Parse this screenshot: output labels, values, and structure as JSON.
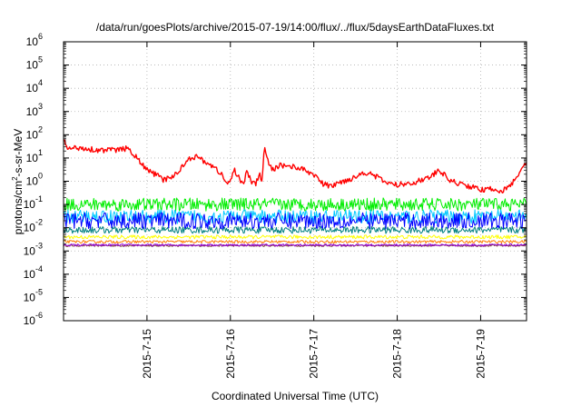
{
  "chart_data": {
    "type": "line",
    "title": "/data/run/goesPlots/archive/2015-07-19/14:00/flux/../flux/5daysEarthDataFluxes.txt",
    "xlabel": "Coordinated Universal Time (UTC)",
    "ylabel": {
      "before": "protons/cm",
      "sup": "2",
      "after": "-s-sr-MeV"
    },
    "yscale": "log",
    "ylim": [
      1e-06,
      1000000.0
    ],
    "xlim": [
      0,
      5.55
    ],
    "grid": true,
    "yticks": [
      {
        "exp": "-6",
        "value": 1e-06
      },
      {
        "exp": "-5",
        "value": 1e-05
      },
      {
        "exp": "-4",
        "value": 0.0001
      },
      {
        "exp": "-3",
        "value": 0.001
      },
      {
        "exp": "-2",
        "value": 0.01
      },
      {
        "exp": "-1",
        "value": 0.1
      },
      {
        "exp": "0",
        "value": 1
      },
      {
        "exp": "1",
        "value": 10
      },
      {
        "exp": "2",
        "value": 100
      },
      {
        "exp": "3",
        "value": 1000
      },
      {
        "exp": "4",
        "value": 10000
      },
      {
        "exp": "5",
        "value": 100000
      },
      {
        "exp": "6",
        "value": 1000000
      }
    ],
    "xticks": [
      {
        "label": "2015-7-15",
        "value": 1
      },
      {
        "label": "2015-7-16",
        "value": 2
      },
      {
        "label": "2015-7-17",
        "value": 3
      },
      {
        "label": "2015-7-18",
        "value": 4
      },
      {
        "label": "2015-7-19",
        "value": 5
      }
    ],
    "series": [
      {
        "color": "#ff0000",
        "noise": 0.12,
        "points": [
          [
            0.0,
            60
          ],
          [
            0.05,
            25
          ],
          [
            0.2,
            28
          ],
          [
            0.4,
            22
          ],
          [
            0.6,
            22
          ],
          [
            0.75,
            25
          ],
          [
            0.82,
            18
          ],
          [
            0.9,
            8
          ],
          [
            1.0,
            3
          ],
          [
            1.1,
            2
          ],
          [
            1.2,
            1.1
          ],
          [
            1.35,
            2
          ],
          [
            1.5,
            10
          ],
          [
            1.6,
            11
          ],
          [
            1.7,
            7
          ],
          [
            1.8,
            4
          ],
          [
            1.9,
            2
          ],
          [
            1.95,
            0.7
          ],
          [
            2.0,
            1.1
          ],
          [
            2.05,
            3
          ],
          [
            2.1,
            1.5
          ],
          [
            2.15,
            0.8
          ],
          [
            2.2,
            2.5
          ],
          [
            2.25,
            1
          ],
          [
            2.3,
            0.7
          ],
          [
            2.35,
            2
          ],
          [
            2.38,
            1
          ],
          [
            2.41,
            40
          ],
          [
            2.44,
            8
          ],
          [
            2.5,
            3
          ],
          [
            2.6,
            5
          ],
          [
            2.8,
            4
          ],
          [
            3.0,
            2
          ],
          [
            3.1,
            0.8
          ],
          [
            3.2,
            0.6
          ],
          [
            3.35,
            1
          ],
          [
            3.5,
            1.5
          ],
          [
            3.6,
            2.5
          ],
          [
            3.7,
            2
          ],
          [
            3.8,
            1.2
          ],
          [
            3.9,
            0.8
          ],
          [
            4.0,
            0.7
          ],
          [
            4.2,
            0.9
          ],
          [
            4.4,
            1.5
          ],
          [
            4.5,
            3
          ],
          [
            4.55,
            2
          ],
          [
            4.65,
            1
          ],
          [
            4.8,
            0.7
          ],
          [
            4.95,
            0.5
          ],
          [
            5.05,
            0.4
          ],
          [
            5.15,
            0.5
          ],
          [
            5.25,
            0.35
          ],
          [
            5.35,
            0.6
          ],
          [
            5.45,
            2
          ],
          [
            5.55,
            6
          ]
        ]
      },
      {
        "color": "#00ee00",
        "base": 0.1,
        "noise": 0.28,
        "points": []
      },
      {
        "color": "#00c8ff",
        "base": 0.03,
        "noise": 0.3,
        "points": []
      },
      {
        "color": "#0000ff",
        "base": 0.02,
        "noise": 0.35,
        "points": []
      },
      {
        "color": "#008080",
        "base": 0.008,
        "noise": 0.15,
        "points": []
      },
      {
        "color": "#ffff00",
        "base": 0.004,
        "noise": 0.08,
        "points": []
      },
      {
        "color": "#ff8000",
        "base": 0.0025,
        "noise": 0.06,
        "points": []
      },
      {
        "color": "#9400d3",
        "base": 0.0018,
        "noise": 0.05,
        "points": []
      },
      {
        "color": "#804040",
        "base": 0.0017,
        "noise": 0.04,
        "points": []
      }
    ]
  }
}
